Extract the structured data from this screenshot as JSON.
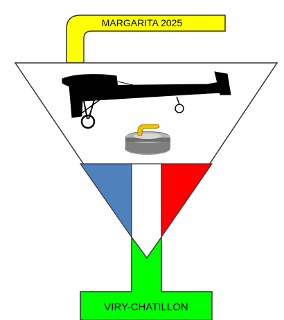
{
  "banner": {
    "text": "MARGARITA 2025"
  },
  "footer": {
    "text": "VIRY-CHATILLON"
  },
  "colors": {
    "banner_yellow": "#ffff00",
    "flag_blue": "#4f81bd",
    "flag_red": "#ff0000",
    "stem_green": "#00ff00",
    "outline": "#333333"
  },
  "icons": [
    "airplane-silhouette-icon",
    "curling-stone-icon"
  ]
}
